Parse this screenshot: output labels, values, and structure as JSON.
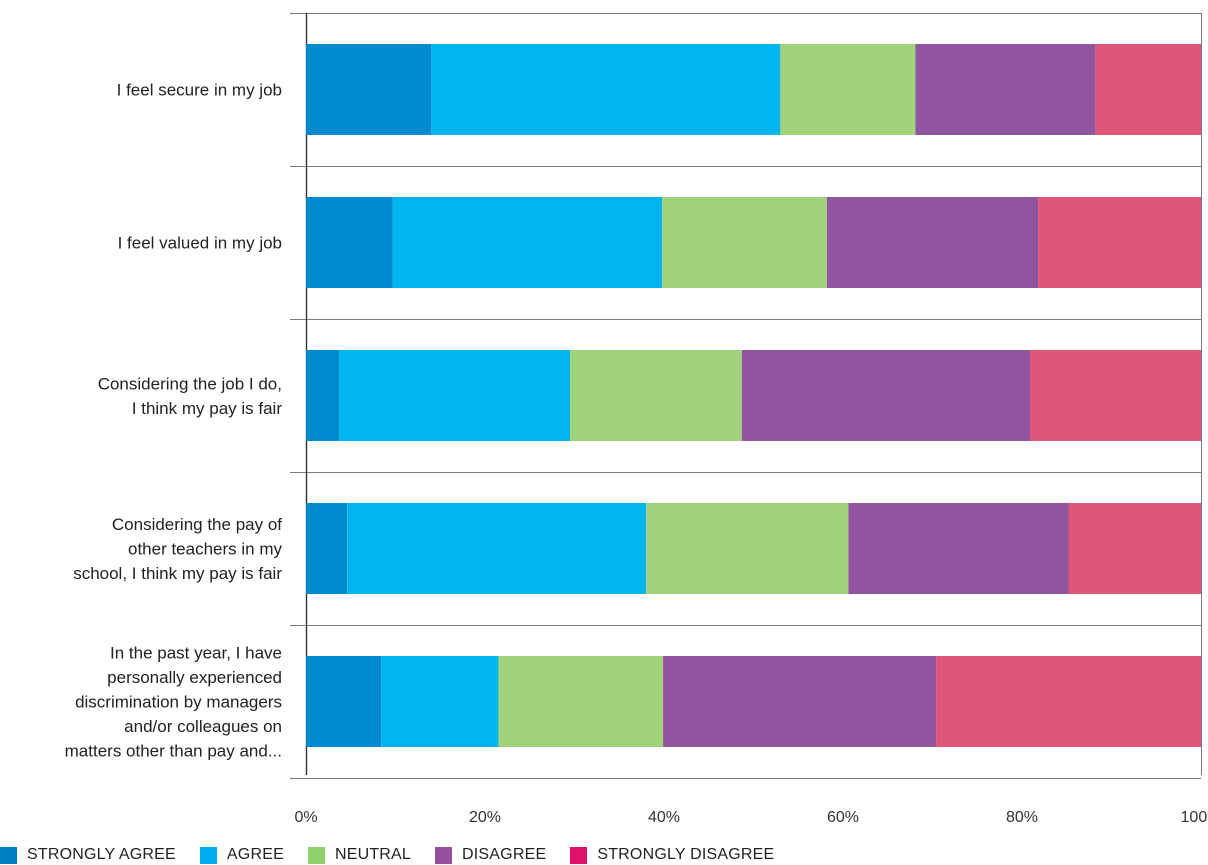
{
  "chart_data": {
    "type": "bar",
    "orientation": "horizontal",
    "stacked": true,
    "categories": [
      [
        "I feel secure in my job"
      ],
      [
        "I feel valued in my job"
      ],
      [
        "Considering the job I do,",
        "I think my pay is fair"
      ],
      [
        "Considering the pay of",
        "other teachers in my",
        "school, I think my pay is fair"
      ],
      [
        "In the past year, I have",
        "personally experienced",
        "discrimination by managers",
        "and/or colleagues on",
        "matters other than pay and..."
      ]
    ],
    "series": [
      {
        "name": "STRONGLY AGREE",
        "color": "#0089cc",
        "values": [
          14,
          9.7,
          3.7,
          4.6,
          8.4
        ]
      },
      {
        "name": "AGREE",
        "color": "#00b5f0",
        "values": [
          39,
          30.1,
          25.8,
          33.4,
          13.1
        ]
      },
      {
        "name": "NEUTRAL",
        "color": "#a2d279",
        "values": [
          15.1,
          18.4,
          19.2,
          22.6,
          18.4
        ]
      },
      {
        "name": "DISAGREE",
        "color": "#9054a1",
        "values": [
          20.1,
          23.6,
          32.2,
          24.6,
          30.5
        ]
      },
      {
        "name": "STRONGLY DISAGREE",
        "color": "#e0567a",
        "values": [
          11.8,
          18.2,
          19.1,
          14.8,
          29.6
        ]
      }
    ],
    "legend_swatch_colors": [
      "#0081c6",
      "#00aeef",
      "#8ed16d",
      "#954f9d",
      "#e0116b"
    ],
    "xlim": [
      0,
      100
    ],
    "x_ticks": [
      "0%",
      "20%",
      "40%",
      "60%",
      "80%",
      "100%"
    ],
    "grid": false,
    "legend_position": "bottom-left"
  }
}
